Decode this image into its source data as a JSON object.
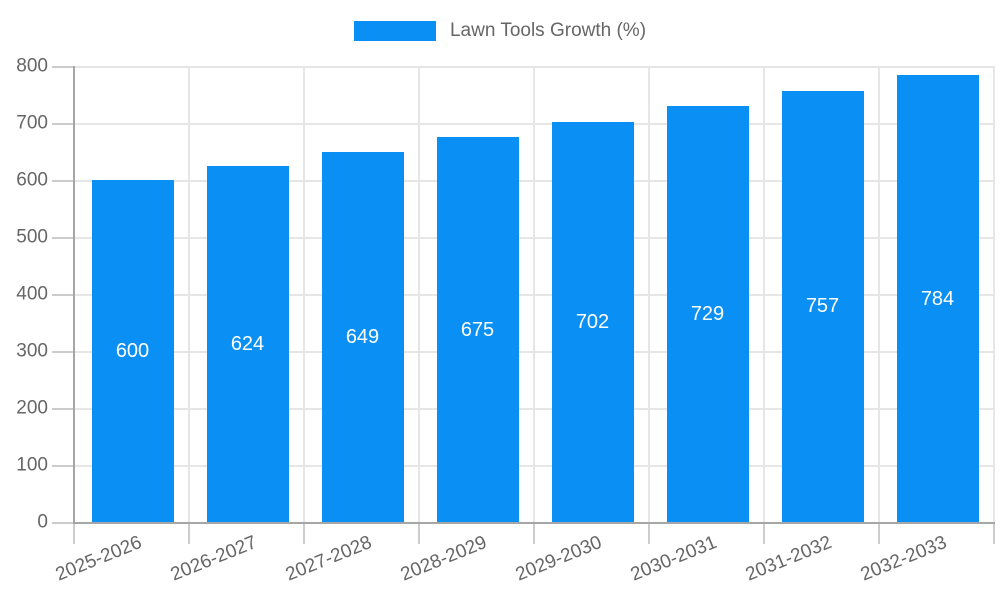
{
  "legend": {
    "label": "Lawn Tools Growth (%)",
    "swatch_color": "#0a90f5"
  },
  "chart_data": {
    "type": "bar",
    "title": "Lawn Tools Growth (%)",
    "categories": [
      "2025-2026",
      "2026-2027",
      "2027-2028",
      "2028-2029",
      "2029-2030",
      "2030-2031",
      "2031-2032",
      "2032-2033"
    ],
    "values": [
      600,
      624,
      649,
      675,
      702,
      729,
      757,
      784
    ],
    "xlabel": "",
    "ylabel": "",
    "ylim": [
      0,
      800
    ],
    "ytick_step": 100,
    "grid": true,
    "legend_position": "top",
    "bar_color": "#0a90f5",
    "bar_value_label_color": "#ffffff",
    "axis_text_color": "#666666",
    "grid_color": "#e6e6e6",
    "axis_line_color": "#a6a6a6"
  }
}
